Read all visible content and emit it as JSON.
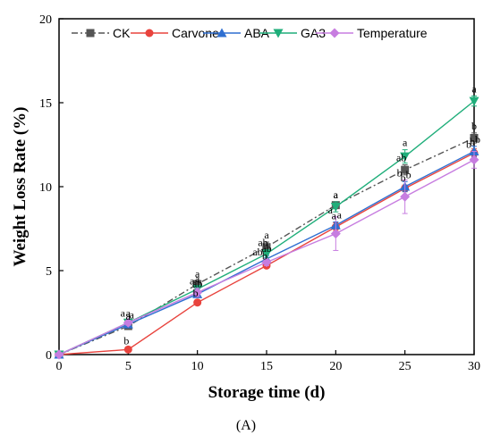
{
  "chart_data": {
    "type": "line",
    "xlabel": "Storage time (d)",
    "ylabel": "Weight Loss Rate (%)",
    "xlim": [
      0,
      30
    ],
    "ylim": [
      0,
      20
    ],
    "xticks": [
      0,
      5,
      10,
      15,
      20,
      25,
      30
    ],
    "yticks": [
      0,
      5,
      10,
      15,
      20
    ],
    "grid": false,
    "legend_position": "top",
    "x": [
      0,
      5,
      10,
      15,
      20,
      25,
      30
    ],
    "series": [
      {
        "name": "CK",
        "color": "#555555",
        "marker": "square",
        "dash": "dashdot",
        "values": [
          0,
          1.7,
          4.2,
          6.4,
          8.9,
          11.0,
          12.9
        ],
        "errors": [
          0,
          0.15,
          0.2,
          0.3,
          0.2,
          0.3,
          0.3
        ],
        "letters": [
          "",
          "a",
          "a",
          "a",
          "a",
          "ab",
          "b"
        ]
      },
      {
        "name": "Carvone",
        "color": "#e8433d",
        "marker": "circle",
        "dash": "solid",
        "values": [
          0,
          0.3,
          3.1,
          5.3,
          7.6,
          9.9,
          12.0
        ],
        "errors": [
          0,
          0.1,
          0.15,
          0.15,
          0.25,
          0.2,
          0.25
        ],
        "letters": [
          "",
          "b",
          "b",
          "b",
          "a",
          "b",
          "b"
        ]
      },
      {
        "name": "ABA",
        "color": "#2f6fd1",
        "marker": "triangle-up",
        "dash": "solid",
        "values": [
          0,
          1.8,
          3.6,
          5.7,
          7.7,
          10.0,
          12.1
        ],
        "errors": [
          0,
          0.15,
          0.2,
          0.2,
          0.2,
          0.3,
          0.3
        ],
        "letters": [
          "",
          "a",
          "ab",
          "ab",
          "a",
          "b",
          "b"
        ]
      },
      {
        "name": "GA3",
        "color": "#1fae7a",
        "marker": "triangle-down",
        "dash": "solid",
        "values": [
          0,
          1.9,
          3.9,
          6.0,
          8.8,
          11.8,
          15.1
        ],
        "errors": [
          0,
          0.15,
          0.2,
          0.25,
          0.3,
          0.4,
          0.3
        ],
        "letters": [
          "",
          "a",
          "a",
          "ab",
          "a",
          "a",
          "a"
        ]
      },
      {
        "name": "Temperature",
        "color": "#c77de0",
        "marker": "diamond",
        "dash": "solid",
        "values": [
          0,
          1.9,
          3.7,
          5.5,
          7.2,
          9.4,
          11.6
        ],
        "errors": [
          0,
          0.15,
          0.25,
          0.2,
          1.0,
          1.0,
          0.5
        ],
        "letters": [
          "",
          "a",
          "a",
          "ab",
          "a",
          "b",
          "b"
        ]
      }
    ]
  },
  "caption": "(A)"
}
